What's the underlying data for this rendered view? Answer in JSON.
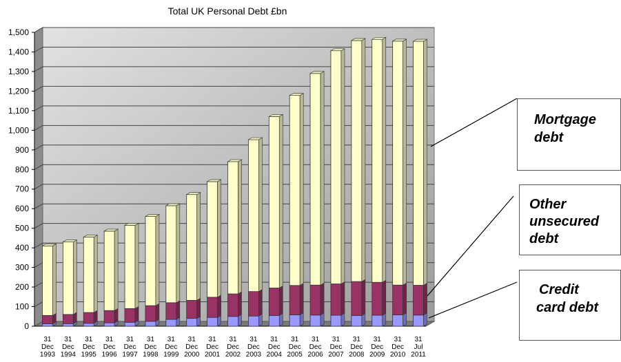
{
  "chart_data": {
    "type": "bar",
    "stacked": true,
    "title": "Total UK Personal Debt £bn",
    "categories": [
      [
        "31",
        "Dec",
        "1993"
      ],
      [
        "31",
        "Dec",
        "1994"
      ],
      [
        "31",
        "Dec",
        "1995"
      ],
      [
        "31",
        "Dec",
        "1996"
      ],
      [
        "31",
        "Dec",
        "1997"
      ],
      [
        "31",
        "Dec",
        "1998"
      ],
      [
        "31",
        "Dec",
        "1999"
      ],
      [
        "31",
        "Dec",
        "2000"
      ],
      [
        "31",
        "Dec",
        "2001"
      ],
      [
        "31",
        "Dec",
        "2002"
      ],
      [
        "31",
        "Dec",
        "2003"
      ],
      [
        "31",
        "Dec",
        "2004"
      ],
      [
        "31",
        "Dec",
        "2005"
      ],
      [
        "31",
        "Dec",
        "2006"
      ],
      [
        "31",
        "Dec",
        "2007"
      ],
      [
        "31",
        "Dec",
        "2008"
      ],
      [
        "31",
        "Dec",
        "2009"
      ],
      [
        "31",
        "Dec",
        "2010"
      ],
      [
        "31",
        "Jul",
        "2011"
      ]
    ],
    "series": [
      {
        "name": "Credit card debt",
        "color": "#9999ff",
        "values": [
          12,
          13,
          15,
          17,
          20,
          25,
          35,
          40,
          45,
          50,
          52,
          55,
          58,
          57,
          56,
          55,
          56,
          58,
          57
        ]
      },
      {
        "name": "Other unsecured debt",
        "color": "#993366",
        "values": [
          43,
          47,
          55,
          63,
          70,
          80,
          85,
          92,
          103,
          115,
          125,
          140,
          150,
          153,
          160,
          173,
          168,
          152,
          152
        ]
      },
      {
        "name": "Mortgage debt",
        "color": "#ffffcc",
        "values": [
          355,
          370,
          385,
          405,
          425,
          455,
          495,
          540,
          590,
          675,
          775,
          875,
          970,
          1080,
          1190,
          1230,
          1240,
          1245,
          1245
        ]
      }
    ],
    "yticks": [
      0,
      100,
      200,
      300,
      400,
      500,
      600,
      700,
      800,
      900,
      1000,
      1100,
      1200,
      1300,
      1400,
      1500
    ],
    "ytick_labels": [
      "0",
      "100",
      "200",
      "300",
      "400",
      "500",
      "600",
      "700",
      "800",
      "900",
      "1,000",
      "1,100",
      "1,200",
      "1,300",
      "1,400",
      "1,500"
    ],
    "ylim": [
      0,
      1500
    ],
    "grid": true,
    "xlabel": "",
    "ylabel": ""
  },
  "callouts": {
    "mortgage": [
      "Mortgage",
      "debt"
    ],
    "unsecured": [
      "Other",
      "unsecured",
      "debt"
    ],
    "credit": [
      "Credit",
      "card debt"
    ]
  }
}
